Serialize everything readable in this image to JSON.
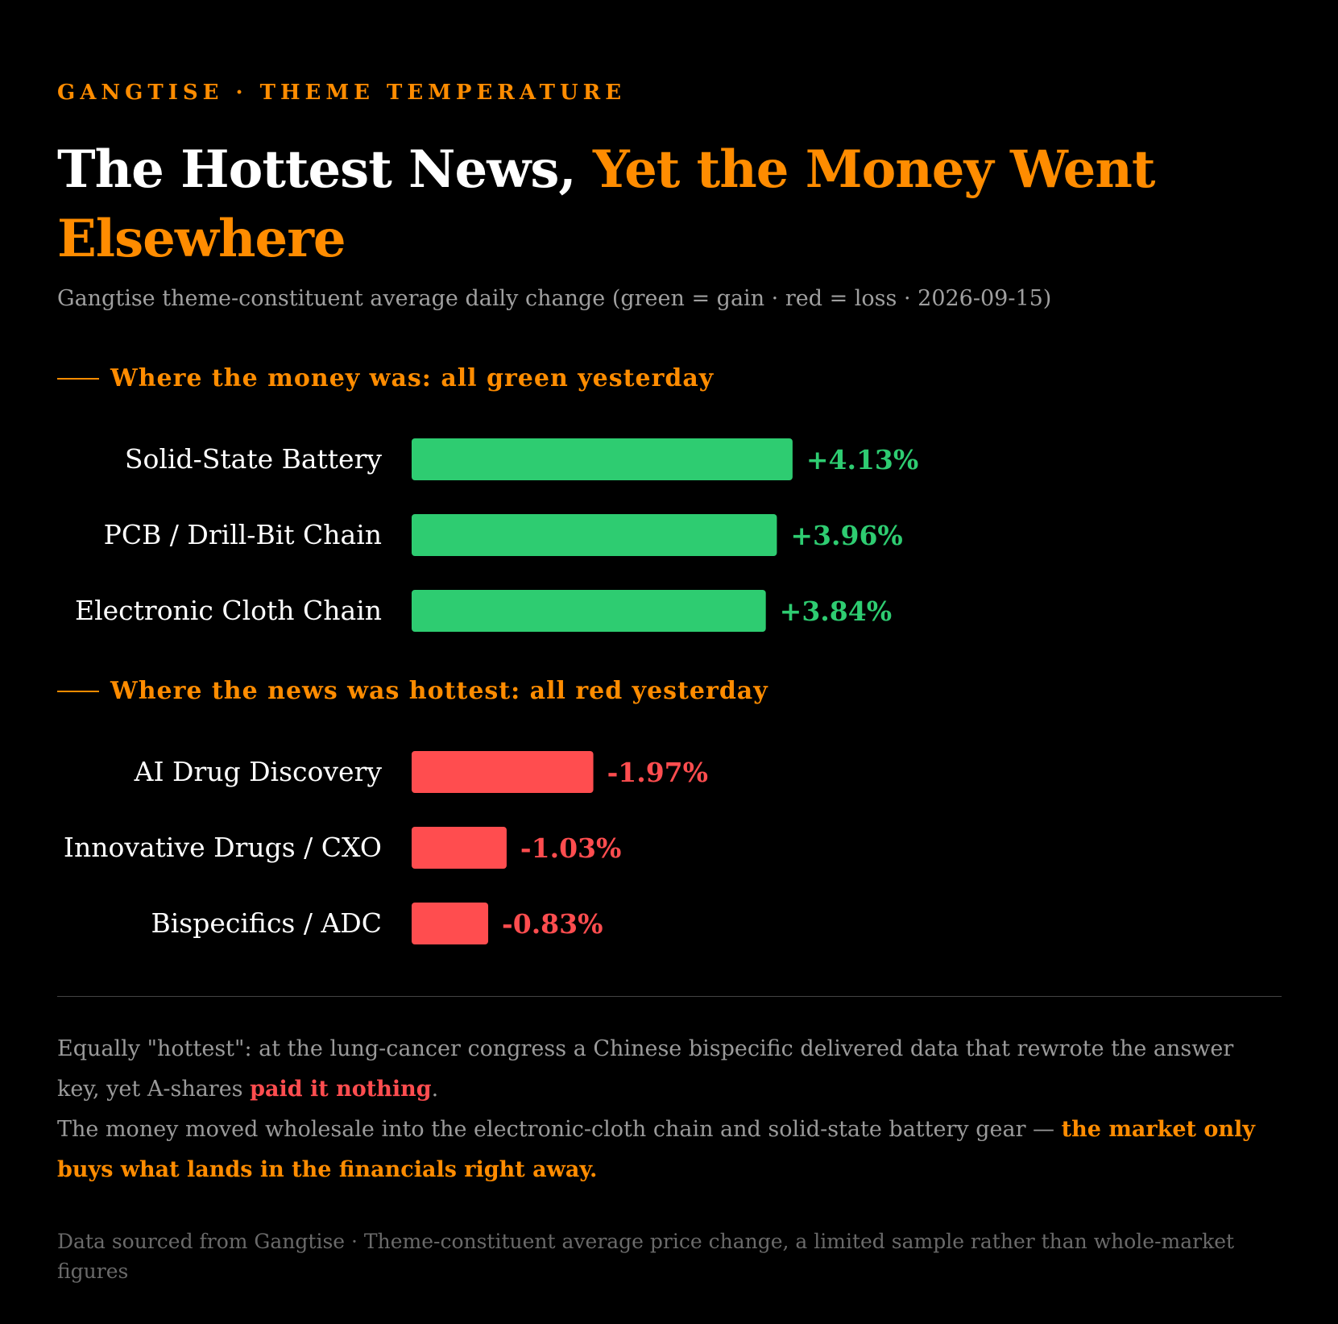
{
  "header": {
    "kicker": "GANGTISE · THEME TEMPERATURE",
    "headline_part1": "The Hottest News, ",
    "headline_part2": "Yet the Money Went Elsewhere",
    "subtitle": "Gangtise theme-constituent average daily change (green = gain · red = loss · 2026-09-15)"
  },
  "sections": [
    {
      "title": "Where the money was: all green yesterday"
    },
    {
      "title": "Where the news was hottest: all red yesterday"
    }
  ],
  "chart_data": {
    "type": "bar",
    "orientation": "horizontal",
    "unit": "%",
    "groups": [
      {
        "title": "Where the money was: all green yesterday",
        "color": "#2ecc71",
        "categories": [
          "Solid-State Battery",
          "PCB / Drill-Bit Chain",
          "Electronic Cloth Chain"
        ],
        "values": [
          4.13,
          3.96,
          3.84
        ],
        "labels": [
          "+4.13%",
          "+3.96%",
          "+3.84%"
        ]
      },
      {
        "title": "Where the news was hottest: all red yesterday",
        "color": "#ff4d4f",
        "categories": [
          "AI Drug Discovery",
          "Innovative Drugs / CXO",
          "Bispecifics / ADC"
        ],
        "values": [
          -1.97,
          -1.03,
          -0.83
        ],
        "labels": [
          "-1.97%",
          "-1.03%",
          "-0.83%"
        ]
      }
    ]
  },
  "note": {
    "line1_a": "Equally \"hottest\": at the lung-cancer congress a Chinese bispecific delivered data that rewrote the answer key, yet A-shares ",
    "line1_em": "paid it nothing",
    "line1_b": ".",
    "line2_a": "The money moved wholesale into the electronic-cloth chain and solid-state battery gear — ",
    "line2_em": "the market only buys what lands in the financials right away."
  },
  "source": "Data sourced from Gangtise · Theme-constituent average price change, a limited sample rather than whole-market figures",
  "colors": {
    "background": "#000000",
    "accent": "#ff8c00",
    "gain": "#2ecc71",
    "loss": "#ff4d4f"
  }
}
